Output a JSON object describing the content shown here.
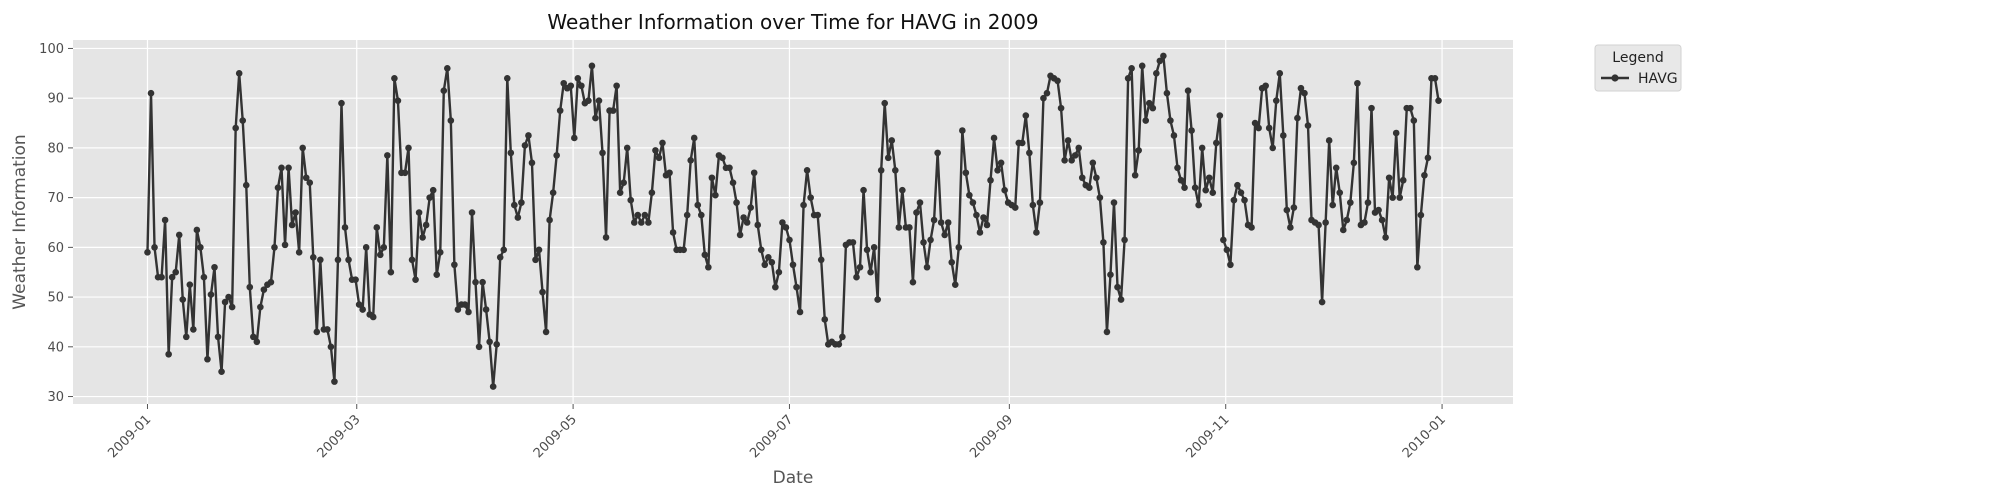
{
  "chart_data": {
    "type": "line",
    "title": "Weather Information over Time for HAVG in 2009",
    "xlabel": "Date",
    "ylabel": "Weather Information",
    "xlim": [
      "2008-12-11",
      "2010-01-21"
    ],
    "ylim": [
      28.5,
      101.7
    ],
    "x_ticks": [
      "2009-01",
      "2009-03",
      "2009-05",
      "2009-07",
      "2009-09",
      "2009-11",
      "2010-01"
    ],
    "y_ticks": [
      30,
      40,
      50,
      60,
      70,
      80,
      90,
      100
    ],
    "grid": true,
    "legend": {
      "title": "Legend",
      "placement": "outside-top-right"
    },
    "series": [
      {
        "name": "HAVG",
        "color": "#333333",
        "marker": "circle",
        "start_date": "2009-01-01",
        "end_date": "2009-12-31",
        "values": [
          59,
          91,
          60,
          54,
          54,
          65.5,
          38.5,
          54,
          55,
          62.5,
          49.5,
          42,
          52.5,
          43.5,
          63.5,
          60,
          54,
          37.5,
          50.5,
          56,
          42,
          35,
          49,
          50,
          48,
          84,
          95,
          85.5,
          72.5,
          52,
          42,
          41,
          48,
          51.5,
          52.5,
          53,
          60,
          72,
          76,
          60.5,
          76,
          64.5,
          67,
          59,
          80,
          74,
          73,
          58,
          43,
          57.5,
          43.5,
          43.5,
          40,
          33,
          57.5,
          89,
          64,
          57.5,
          53.5,
          53.5,
          48.5,
          47.5,
          60,
          46.5,
          46,
          64,
          58.5,
          60,
          78.5,
          55,
          94,
          89.5,
          75,
          75,
          80,
          57.5,
          53.5,
          67,
          62,
          64.5,
          70,
          71.5,
          54.5,
          59,
          91.5,
          96,
          85.5,
          56.5,
          47.5,
          48.5,
          48.5,
          47,
          67,
          53,
          40,
          53,
          47.5,
          41,
          32,
          40.5,
          58,
          59.5,
          94,
          79,
          68.5,
          66,
          69,
          80.5,
          82.5,
          77,
          57.5,
          59.5,
          51,
          43,
          65.5,
          71,
          78.5,
          87.5,
          93,
          92,
          92.5,
          82,
          94,
          92.5,
          89,
          89.5,
          96.5,
          86,
          89.5,
          79,
          62,
          87.5,
          87.5,
          92.5,
          71,
          73,
          80,
          69.5,
          65,
          66.5,
          65,
          66.5,
          65,
          71,
          79.5,
          78,
          81,
          74.5,
          75,
          63,
          59.5,
          59.5,
          59.5,
          66.5,
          77.5,
          82,
          68.5,
          66.5,
          58.5,
          56,
          74,
          70.5,
          78.5,
          78,
          76,
          76,
          73,
          69,
          62.5,
          66,
          65,
          68,
          75,
          64.5,
          59.5,
          56.5,
          58,
          57,
          52,
          55,
          65,
          64,
          61.5,
          56.5,
          52,
          47,
          68.5,
          75.5,
          70,
          66.5,
          66.5,
          57.5,
          45.5,
          40.5,
          41,
          40.5,
          40.5,
          42,
          60.5,
          61,
          61,
          54,
          56,
          71.5,
          59.5,
          55,
          60,
          49.5,
          75.5,
          89,
          78,
          81.5,
          75.5,
          64,
          71.5,
          64,
          64,
          53,
          67,
          69,
          61,
          56,
          61.5,
          65.5,
          79,
          65,
          62.5,
          65,
          57,
          52.5,
          60,
          83.5,
          75,
          70.5,
          69,
          66.5,
          63,
          66,
          64.5,
          73.5,
          82,
          75.5,
          77,
          71.5,
          69,
          68.5,
          68,
          81,
          81,
          86.5,
          79,
          68.5,
          63,
          69,
          90,
          91,
          94.5,
          94,
          93.5,
          88,
          77.5,
          81.5,
          77.5,
          78.5,
          80,
          74,
          72.5,
          72,
          77,
          74,
          70,
          61,
          43,
          54.5,
          69,
          52,
          49.5,
          61.5,
          94,
          96,
          74.5,
          79.5,
          96.5,
          85.5,
          89,
          88,
          95,
          97.5,
          98.5,
          91,
          85.5,
          82.5,
          76,
          73.5,
          72,
          91.5,
          83.5,
          72,
          68.5,
          80,
          71.5,
          74,
          71,
          81,
          86.5,
          61.5,
          59.5,
          56.5,
          69.5,
          72.5,
          71,
          69.5,
          64.5,
          64,
          85,
          84,
          92,
          92.5,
          84,
          80,
          89.5,
          95,
          82.5,
          67.5,
          64,
          68,
          86,
          92,
          91,
          84.5,
          65.5,
          65,
          64.5,
          49,
          65,
          81.5,
          68.5,
          76,
          71,
          63.5,
          65.5,
          69,
          77,
          93,
          64.5,
          65,
          69,
          88,
          67,
          67.5,
          65.5,
          62,
          74,
          70,
          83,
          70,
          73.5,
          88,
          88,
          85.5,
          56,
          66.5,
          74.5,
          78,
          94,
          94,
          89.5
        ]
      }
    ]
  }
}
